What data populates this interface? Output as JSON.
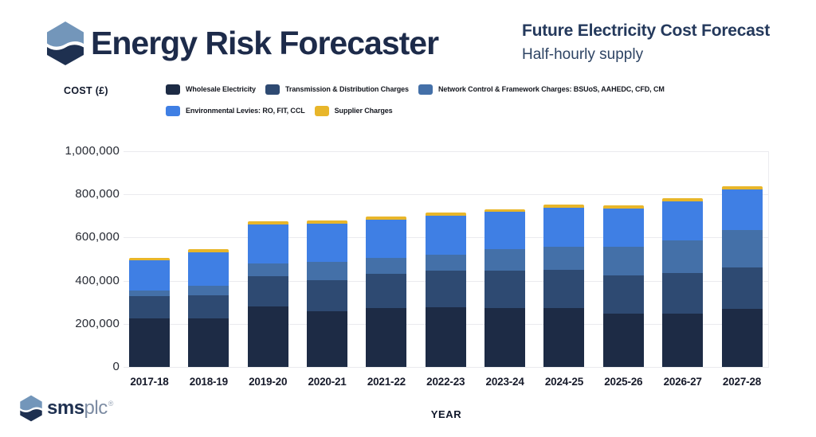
{
  "header": {
    "app_title": "Energy Risk Forecaster",
    "subtitle_line1": "Future Electricity Cost Forecast",
    "subtitle_line2": "Half-hourly supply"
  },
  "axis": {
    "y_axis_title": "COST (£)",
    "x_axis_title": "YEAR"
  },
  "footer": {
    "logo_text_bold": "sms",
    "logo_text_light": "plc",
    "registered_mark": "®"
  },
  "colors": {
    "brand_navy": "#1d2b4a",
    "logo_light_blue": "#7396ba",
    "logo_dark_navy": "#1e3050",
    "gridline": "#eaeaee"
  },
  "chart_data": {
    "type": "bar",
    "stacked": true,
    "title": "Future Electricity Cost Forecast",
    "subtitle": "Half-hourly supply",
    "xlabel": "YEAR",
    "ylabel": "COST (£)",
    "ylim": [
      0,
      1000000
    ],
    "grid": true,
    "legend_position": "top",
    "y_ticks": [
      "1,000,000",
      "800,000",
      "600,000",
      "400,000",
      "200,000",
      "0"
    ],
    "categories": [
      "2017-18",
      "2018-19",
      "2019-20",
      "2020-21",
      "2021-22",
      "2022-23",
      "2023-24",
      "2024-25",
      "2025-26",
      "2026-27",
      "2027-28"
    ],
    "series": [
      {
        "name": "Wholesale Electricity",
        "color": "#1d2b45",
        "values": [
          225000,
          226000,
          281000,
          260000,
          272000,
          275000,
          273000,
          273000,
          246000,
          249000,
          268000
        ]
      },
      {
        "name": "Transmission & Distribution Charges",
        "color": "#2e4a72",
        "values": [
          103000,
          105000,
          138000,
          142000,
          158000,
          171000,
          173000,
          176000,
          179000,
          188000,
          194000
        ]
      },
      {
        "name": "Network Control & Framework Charges: BSUoS, AAHEDC, CFD, CM",
        "color": "#4470a8",
        "values": [
          26000,
          47000,
          60000,
          86000,
          75000,
          76000,
          101000,
          109000,
          131000,
          150000,
          172000
        ]
      },
      {
        "name": "Environmental Levies: RO, FIT, CCL",
        "color": "#3f7fe4",
        "values": [
          139000,
          153000,
          182000,
          177000,
          178000,
          181000,
          172000,
          181000,
          179000,
          181000,
          189000
        ]
      },
      {
        "name": "Supplier Charges",
        "color": "#e8b62a",
        "values": [
          13000,
          14000,
          13000,
          14000,
          16000,
          12000,
          12000,
          14000,
          15000,
          16000,
          14000
        ]
      }
    ]
  }
}
